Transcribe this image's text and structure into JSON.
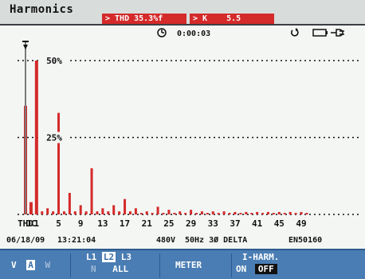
{
  "header": {
    "title": "Harmonics",
    "thd_badge": "> THD 35.3%f",
    "k_badge": "> K    5.5"
  },
  "status": {
    "timer": "0:00:03",
    "icon_timer": "clock-icon",
    "icon_hold": "hold-icon",
    "icon_power": "battery-plug-icon"
  },
  "chart_data": {
    "type": "bar",
    "y_tick_labels": [
      "50%",
      "25%"
    ],
    "ylim": [
      0,
      50
    ],
    "x_tick_labels": [
      "THD",
      "DC",
      "1",
      "5",
      "9",
      "13",
      "17",
      "21",
      "25",
      "29",
      "33",
      "37",
      "41",
      "45",
      "49"
    ],
    "categories": [
      "THD",
      "DC",
      "1",
      "2",
      "3",
      "4",
      "5",
      "6",
      "7",
      "8",
      "9",
      "10",
      "11",
      "12",
      "13",
      "14",
      "15",
      "16",
      "17",
      "18",
      "19",
      "20",
      "21",
      "22",
      "23",
      "24",
      "25",
      "26",
      "27",
      "28",
      "29",
      "30",
      "31",
      "32",
      "33",
      "34",
      "35",
      "36",
      "37",
      "38",
      "39",
      "40",
      "41",
      "42",
      "43",
      "44",
      "45",
      "46",
      "47",
      "48",
      "49",
      "50"
    ],
    "values": [
      35.3,
      4,
      50,
      1,
      2,
      1,
      33,
      1,
      7,
      1,
      3,
      1,
      15,
      1,
      2,
      1,
      3,
      1,
      5,
      1,
      2,
      0.5,
      1,
      0.5,
      2.5,
      0.5,
      1.5,
      0.5,
      1,
      0.5,
      1.5,
      0.5,
      1,
      0.5,
      1,
      0.5,
      1,
      0.5,
      0.8,
      0.5,
      0.8,
      0.5,
      0.8,
      0.5,
      0.8,
      0.5,
      0.8,
      0.5,
      0.8,
      0.5,
      0.8,
      0.5
    ],
    "bar_color": "#d42a2a",
    "cursor_on": "THD",
    "grid": true
  },
  "footer": {
    "date": "06/18/09",
    "time": "13:21:04",
    "voltage": "480V",
    "config": "50Hz 3Ø DELTA",
    "standard": "EN50160"
  },
  "softkeys": {
    "vaw_v": "V",
    "vaw_a": "A",
    "vaw_w": "W",
    "phase_top": "L1 L2 L3",
    "phase_l1": "L1",
    "phase_l2": "L2",
    "phase_l3": "L3",
    "phase_n": "N",
    "phase_all": "ALL",
    "meter": "METER",
    "iharm_title": "I-HARM.",
    "iharm_on": "ON",
    "iharm_off": "OFF"
  }
}
